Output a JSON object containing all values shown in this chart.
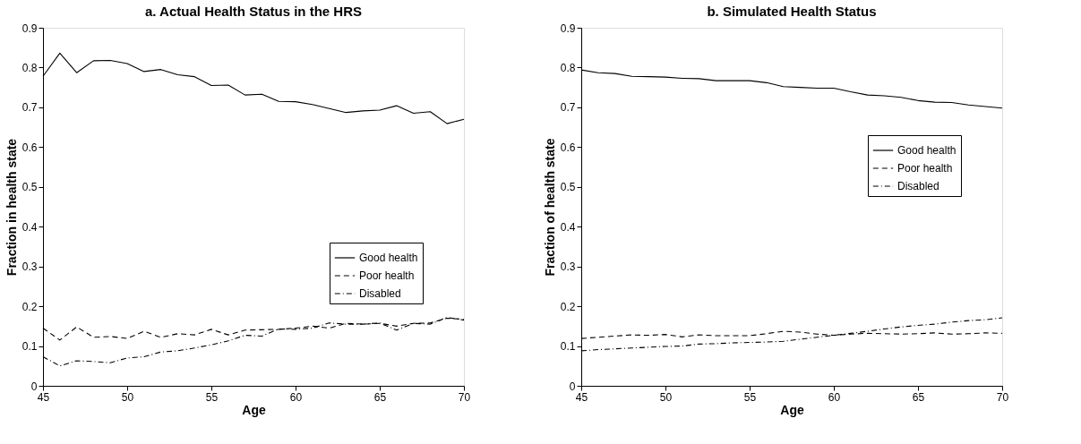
{
  "chart_data": [
    {
      "type": "line",
      "title": "a. Actual Health Status in the HRS",
      "xlabel": "Age",
      "ylabel": "Fraction in health state",
      "x": [
        45,
        46,
        47,
        48,
        49,
        50,
        51,
        52,
        53,
        54,
        55,
        56,
        57,
        58,
        59,
        60,
        61,
        62,
        63,
        64,
        65,
        66,
        67,
        68,
        69,
        70
      ],
      "xlim": [
        45,
        70
      ],
      "xticks": [
        45,
        50,
        55,
        60,
        65,
        70
      ],
      "ylim": [
        0,
        0.9
      ],
      "yticks": [
        0,
        0.1,
        0.2,
        0.3,
        0.4,
        0.5,
        0.6,
        0.7,
        0.8,
        0.9
      ],
      "grid": false,
      "legend": "bottom right",
      "marker": "none",
      "series": [
        {
          "name": "Good health",
          "color": "#000000",
          "line_style": "solid",
          "values": [
            0.778,
            0.836,
            0.787,
            0.817,
            0.818,
            0.81,
            0.79,
            0.795,
            0.782,
            0.777,
            0.755,
            0.756,
            0.731,
            0.733,
            0.715,
            0.714,
            0.707,
            0.697,
            0.687,
            0.691,
            0.693,
            0.704,
            0.685,
            0.689,
            0.659,
            0.67
          ]
        },
        {
          "name": "Poor health",
          "color": "#000000",
          "line_style": "dashed",
          "values": [
            0.145,
            0.115,
            0.148,
            0.122,
            0.124,
            0.119,
            0.137,
            0.122,
            0.131,
            0.128,
            0.142,
            0.128,
            0.14,
            0.141,
            0.142,
            0.145,
            0.15,
            0.145,
            0.157,
            0.155,
            0.157,
            0.15,
            0.157,
            0.158,
            0.17,
            0.167
          ]
        },
        {
          "name": "Disabled",
          "color": "#000000",
          "line_style": "dashdot",
          "values": [
            0.073,
            0.05,
            0.063,
            0.061,
            0.058,
            0.07,
            0.073,
            0.085,
            0.088,
            0.095,
            0.103,
            0.113,
            0.127,
            0.125,
            0.143,
            0.142,
            0.145,
            0.158,
            0.155,
            0.155,
            0.158,
            0.14,
            0.157,
            0.155,
            0.172,
            0.165
          ]
        }
      ]
    },
    {
      "type": "line",
      "title": "b. Simulated Health Status",
      "xlabel": "Age",
      "ylabel": "Fraction of health state",
      "x": [
        45,
        46,
        47,
        48,
        49,
        50,
        51,
        52,
        53,
        54,
        55,
        56,
        57,
        58,
        59,
        60,
        61,
        62,
        63,
        64,
        65,
        66,
        67,
        68,
        69,
        70
      ],
      "xlim": [
        45,
        70
      ],
      "xticks": [
        45,
        50,
        55,
        60,
        65,
        70
      ],
      "ylim": [
        0,
        0.9
      ],
      "yticks": [
        0,
        0.1,
        0.2,
        0.3,
        0.4,
        0.5,
        0.6,
        0.7,
        0.8,
        0.9
      ],
      "grid": false,
      "legend": "right",
      "marker": "none",
      "series": [
        {
          "name": "Good health",
          "color": "#000000",
          "line_style": "solid",
          "values": [
            0.794,
            0.787,
            0.785,
            0.778,
            0.777,
            0.776,
            0.773,
            0.772,
            0.767,
            0.767,
            0.767,
            0.762,
            0.752,
            0.75,
            0.748,
            0.748,
            0.739,
            0.731,
            0.729,
            0.725,
            0.717,
            0.713,
            0.712,
            0.706,
            0.702,
            0.698
          ]
        },
        {
          "name": "Poor health",
          "color": "#000000",
          "line_style": "dashed",
          "values": [
            0.119,
            0.122,
            0.125,
            0.128,
            0.127,
            0.129,
            0.123,
            0.128,
            0.126,
            0.126,
            0.126,
            0.131,
            0.137,
            0.135,
            0.13,
            0.127,
            0.13,
            0.132,
            0.131,
            0.13,
            0.131,
            0.133,
            0.13,
            0.131,
            0.133,
            0.132
          ]
        },
        {
          "name": "Disabled",
          "color": "#000000",
          "line_style": "dashdot",
          "values": [
            0.088,
            0.091,
            0.093,
            0.095,
            0.097,
            0.099,
            0.1,
            0.105,
            0.106,
            0.108,
            0.109,
            0.11,
            0.112,
            0.117,
            0.122,
            0.127,
            0.132,
            0.137,
            0.143,
            0.148,
            0.152,
            0.155,
            0.16,
            0.164,
            0.166,
            0.171
          ]
        }
      ]
    }
  ]
}
